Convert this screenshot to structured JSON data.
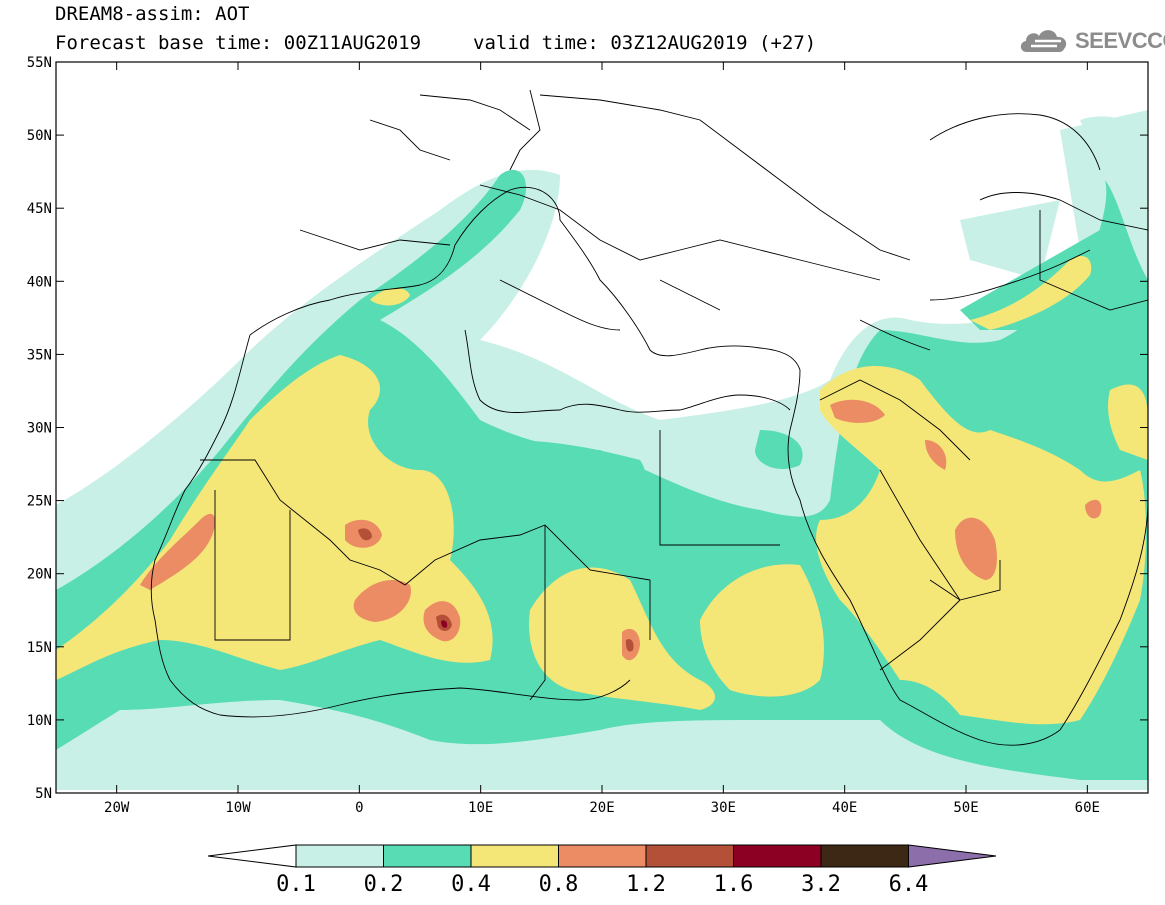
{
  "title": {
    "line1": "DREAM8-assim: AOT",
    "base_time": "Forecast base time: 00Z11AUG2019",
    "valid_time": "valid time: 03Z12AUG2019 (+27)"
  },
  "logo": {
    "text": "SEEVCCC",
    "icon": "cloud-icon"
  },
  "map": {
    "projection": "cylindrical equidistant",
    "lon_range": [
      -25,
      65
    ],
    "lat_range": [
      5,
      55
    ],
    "lat_ticks": [
      "55N",
      "50N",
      "45N",
      "40N",
      "35N",
      "30N",
      "25N",
      "20N",
      "15N",
      "10N",
      "5N"
    ],
    "lon_ticks": [
      "20W",
      "10W",
      "0",
      "10E",
      "20E",
      "30E",
      "40E",
      "50E",
      "60E"
    ]
  },
  "colorbar": {
    "labels": [
      "0.1",
      "0.2",
      "0.4",
      "0.8",
      "1.2",
      "1.6",
      "3.2",
      "6.4"
    ],
    "colors": [
      "#ffffff",
      "#c8f0e6",
      "#58dcb4",
      "#f5e678",
      "#eb8c64",
      "#b45037",
      "#8c0023",
      "#3c2814",
      "#8c6eaa"
    ]
  }
}
